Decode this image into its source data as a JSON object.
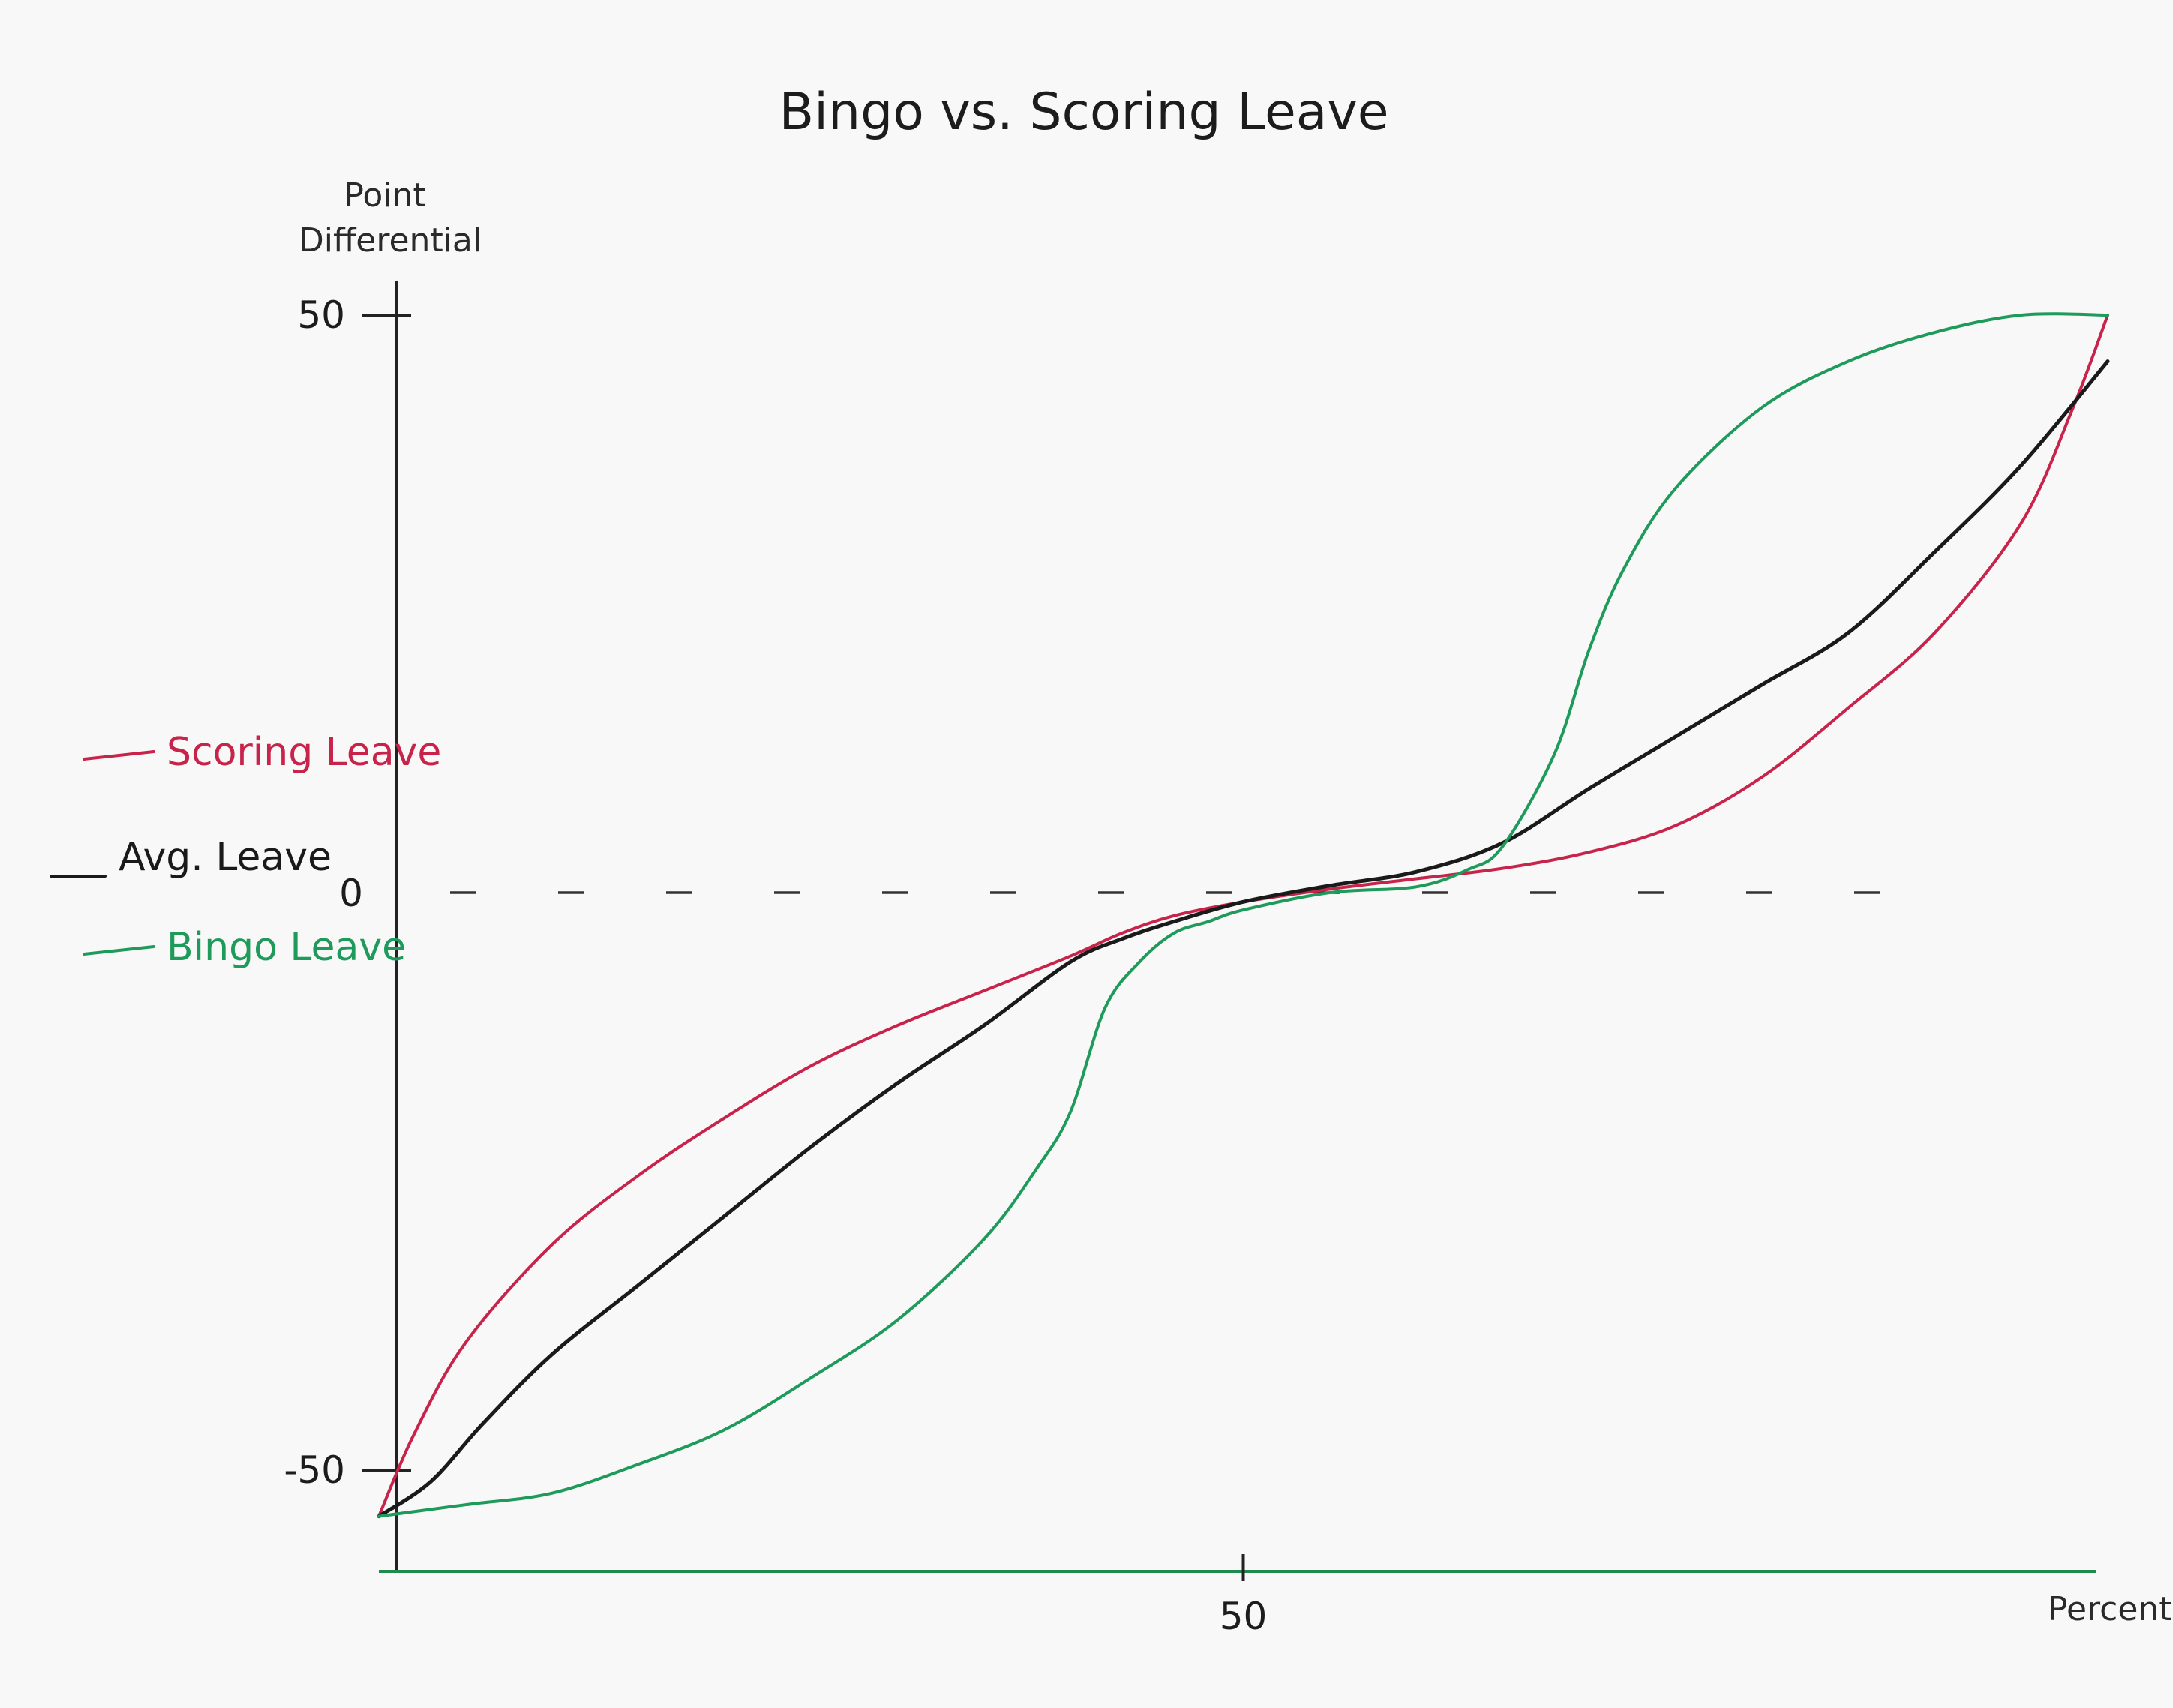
{
  "chart_data": {
    "type": "line",
    "title": "Bingo vs. Scoring Leave",
    "xlabel": "Percentile",
    "ylabel": "Point Differential",
    "xlim": [
      0,
      100
    ],
    "ylim": [
      -60,
      50
    ],
    "x_ticks": [
      {
        "value": 50,
        "label": "50"
      }
    ],
    "y_ticks": [
      {
        "value": 50,
        "label": "50"
      },
      {
        "value": -50,
        "label": "-50"
      }
    ],
    "reference_line": {
      "y": 0,
      "label": "0",
      "style": "dashed"
    },
    "legend": "left",
    "series": [
      {
        "name": "Scoring Leave",
        "color": "#c8234a",
        "x": [
          0,
          2,
          5,
          10,
          15,
          20,
          25,
          30,
          35,
          40,
          43,
          46,
          50,
          55,
          60,
          65,
          70,
          75,
          80,
          85,
          90,
          95,
          98,
          100
        ],
        "y": [
          -54,
          -47,
          -39,
          -30.5,
          -24.5,
          -19.5,
          -15,
          -11.5,
          -8.5,
          -5.5,
          -3.5,
          -2,
          -0.8,
          0.3,
          1.2,
          2.1,
          3.5,
          5.8,
          10,
          16,
          22.5,
          32,
          42,
          50
        ]
      },
      {
        "name": "Avg. Leave",
        "color": "#1a1a1a",
        "x": [
          0,
          3,
          6,
          10,
          15,
          20,
          25,
          30,
          35,
          40,
          43,
          46,
          50,
          55,
          60,
          65,
          70,
          75,
          80,
          85,
          90,
          95,
          100
        ],
        "y": [
          -54,
          -51,
          -46,
          -40,
          -34,
          -28,
          -22,
          -16.5,
          -11.5,
          -6,
          -4,
          -2.5,
          -0.8,
          0.6,
          1.8,
          4.3,
          9,
          13.5,
          18,
          22.5,
          29.5,
          37,
          46
        ]
      },
      {
        "name": "Bingo Leave",
        "color": "#1e9a5a",
        "x": [
          0,
          5,
          10,
          15,
          20,
          25,
          30,
          35,
          38,
          40,
          42,
          44,
          46,
          48,
          50,
          55,
          60,
          63,
          65,
          68,
          70,
          72,
          75,
          80,
          85,
          90,
          95,
          100
        ],
        "y": [
          -54,
          -53,
          -52,
          -49.5,
          -46.5,
          -42,
          -37,
          -30,
          -24,
          -19,
          -10,
          -6,
          -3.5,
          -2.5,
          -1.5,
          0,
          0.5,
          2,
          4,
          12,
          21,
          28,
          35,
          42,
          46,
          48.5,
          50,
          50
        ]
      }
    ]
  }
}
